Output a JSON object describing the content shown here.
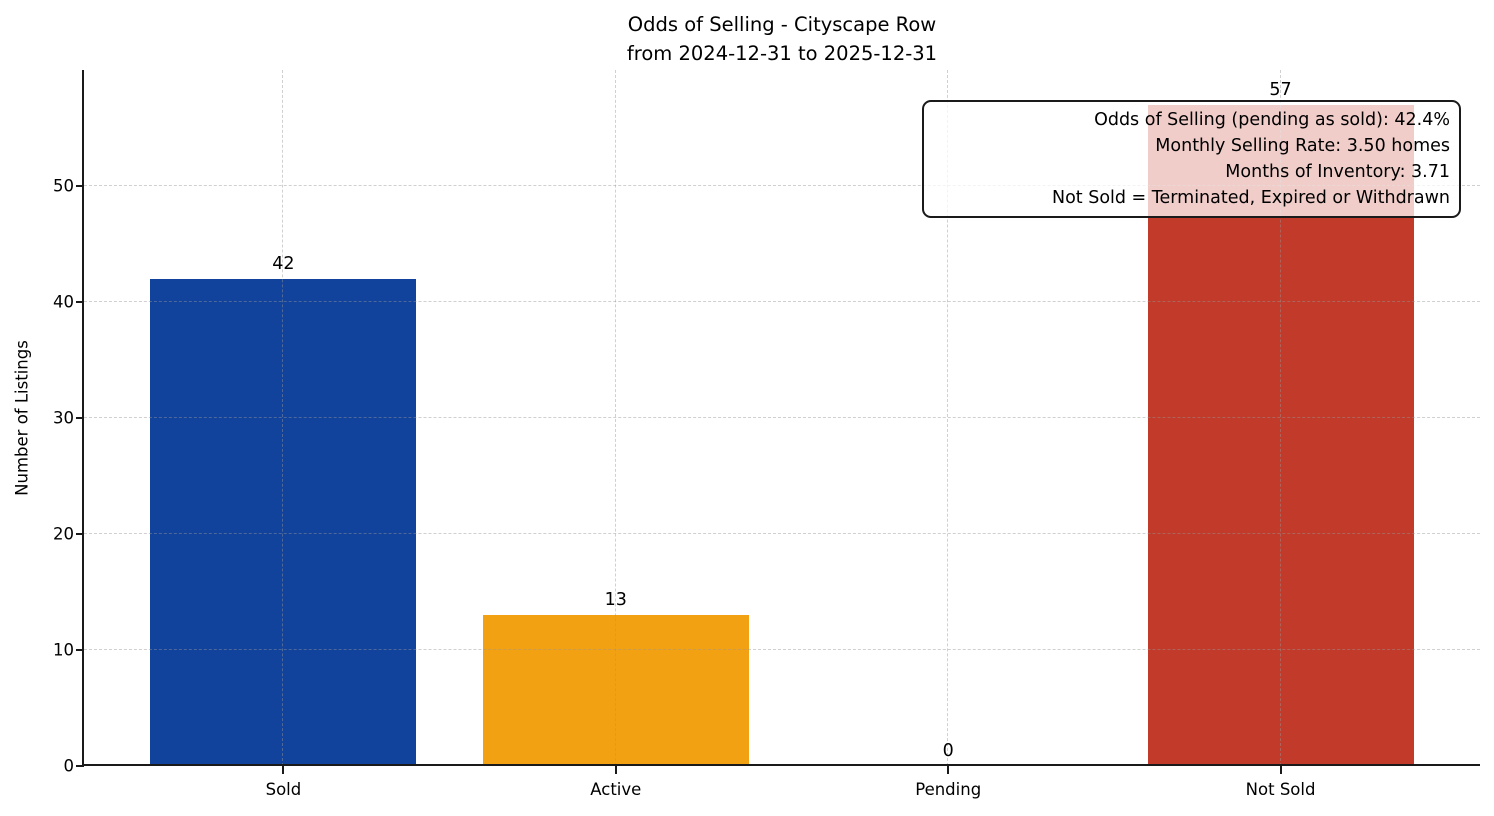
{
  "title": {
    "line1": "Odds of Selling - Cityscape Row",
    "line2": "from 2024-12-31 to 2025-12-31"
  },
  "annotation": {
    "lines": [
      "Odds of Selling (pending as sold): 42.4%",
      "Monthly Selling Rate: 3.50 homes",
      "Months of Inventory: 3.71",
      "Not Sold = Terminated, Expired or Withdrawn"
    ]
  },
  "chart_data": {
    "type": "bar",
    "title": "Odds of Selling - Cityscape Row\nfrom 2024-12-31 to 2025-12-31",
    "categories": [
      "Sold",
      "Active",
      "Pending",
      "Not Sold"
    ],
    "values": [
      42,
      13,
      0,
      57
    ],
    "value_labels": [
      "42",
      "13",
      "0",
      "57"
    ],
    "bar_colors": [
      "#11429c",
      "#f2a113",
      null,
      "#c13a2a"
    ],
    "xlabel": "",
    "ylabel": "Number of Listings",
    "ylim": [
      0,
      60
    ],
    "yticks": [
      0,
      10,
      20,
      30,
      40,
      50
    ],
    "grid": "dashed, light gray, both axes, drawn over bars",
    "legend": "none",
    "axis_color": "#1a1a1a"
  }
}
